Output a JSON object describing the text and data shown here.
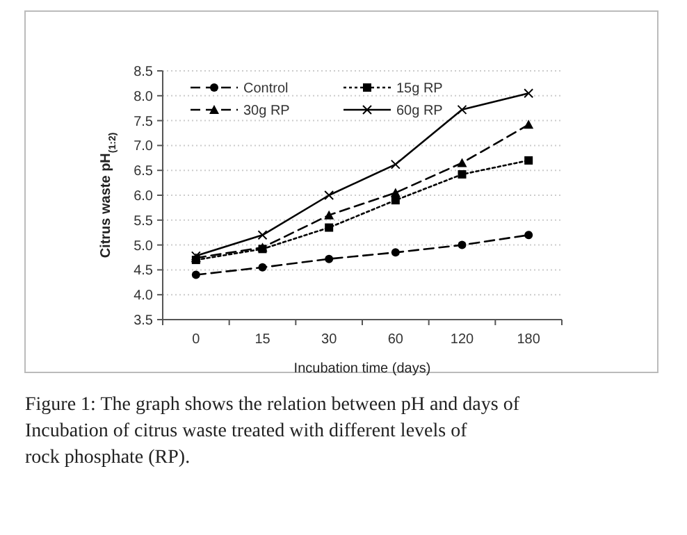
{
  "chart_data": {
    "type": "line",
    "xlabel": "Incubation time (days)",
    "ylabel": "Citrus waste pH$_{(1:2)}$",
    "categories": [
      "0",
      "15",
      "30",
      "60",
      "120",
      "180"
    ],
    "series": [
      {
        "name": "Control",
        "color": "#000000",
        "values": [
          4.4,
          4.55,
          4.72,
          4.85,
          5.0,
          5.2
        ],
        "marker": "circle",
        "line_style": "dashed"
      },
      {
        "name": "15g RP",
        "color": "#000000",
        "values": [
          4.7,
          4.92,
          5.35,
          5.9,
          6.42,
          6.7
        ],
        "marker": "square",
        "line_style": "dotted"
      },
      {
        "name": "30g RP",
        "color": "#000000",
        "values": [
          4.74,
          4.95,
          5.6,
          6.05,
          6.65,
          7.42
        ],
        "marker": "triangle",
        "line_style": "dashed"
      },
      {
        "name": "60g RP",
        "color": "#000000",
        "values": [
          4.78,
          5.2,
          6.0,
          6.62,
          7.72,
          8.05
        ],
        "marker": "cross",
        "line_style": "solid"
      }
    ],
    "ylim": [
      3.5,
      8.5
    ],
    "yticks": [
      {
        "value": 3.5,
        "label": "3.5"
      },
      {
        "value": 4,
        "label": "4.0"
      },
      {
        "value": 4.5,
        "label": "4.5"
      },
      {
        "value": 5,
        "label": "5.0"
      },
      {
        "value": 5.5,
        "label": "5.5"
      },
      {
        "value": 6,
        "label": "6.0"
      },
      {
        "value": 6.5,
        "label": "6.5"
      },
      {
        "value": 7,
        "label": "7.0"
      },
      {
        "value": 7.5,
        "label": "7.5"
      },
      {
        "value": 8,
        "label": "8.0"
      },
      {
        "value": 8.5,
        "label": "8.5"
      }
    ],
    "grid": "y",
    "legend": "top left",
    "annotations": [
      "Figure 1: The graph shows the relation between pH and days of Incubation of citrus waste treated with different levels of rock phosphate (RP)."
    ]
  }
}
